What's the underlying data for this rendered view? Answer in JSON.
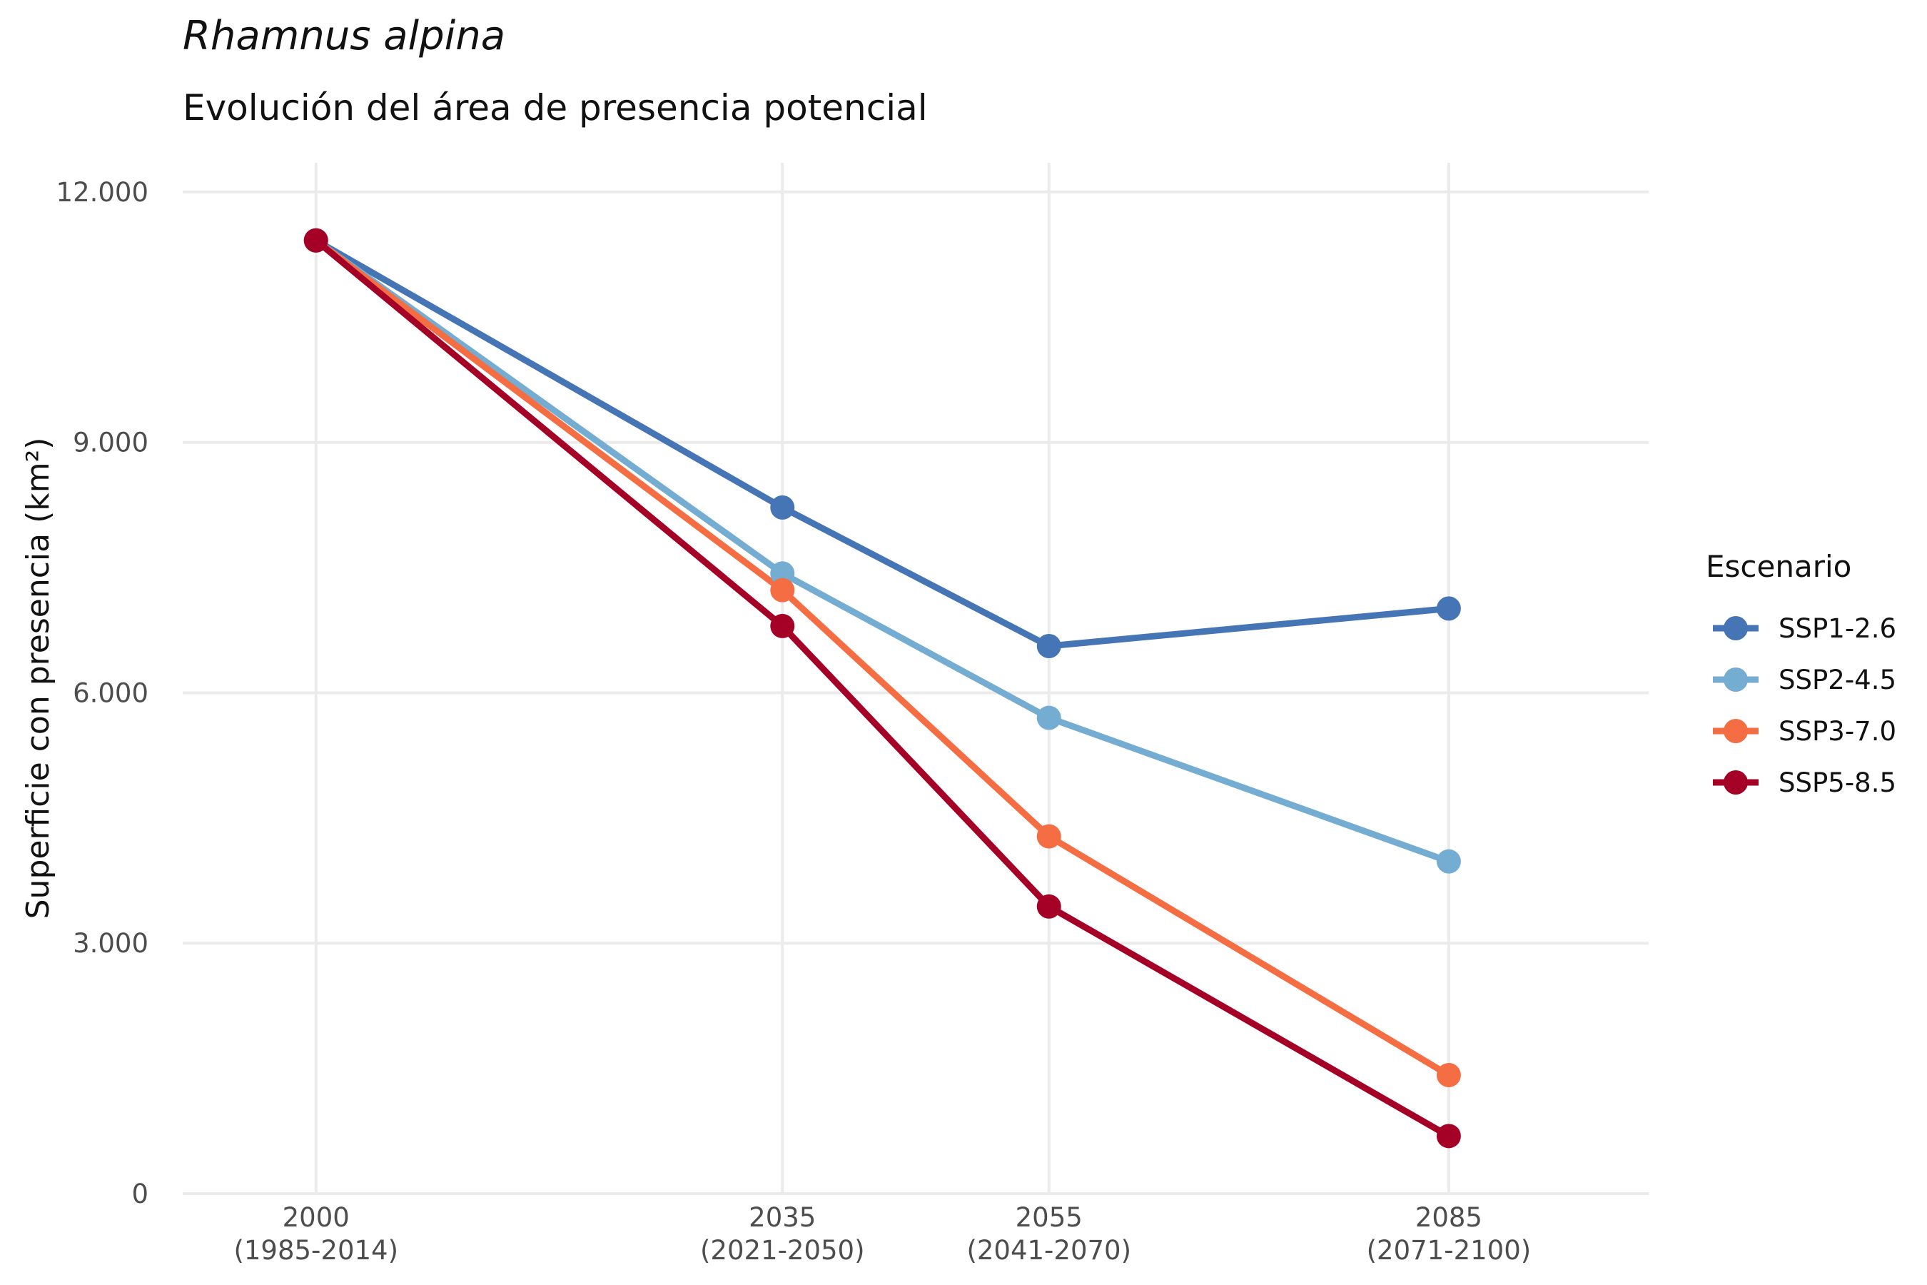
{
  "title": "Rhamnus alpina",
  "subtitle": "Evolución del área de presencia potencial",
  "chart_data": {
    "type": "line",
    "title": "Rhamnus alpina",
    "subtitle": "Evolución del área de presencia potencial",
    "xlabel": "",
    "ylabel": "Superficie con presencia (km²)",
    "x": [
      2000,
      2035,
      2055,
      2085
    ],
    "x_tick_labels": [
      [
        "2000",
        "(1985-2014)"
      ],
      [
        "2035",
        "(2021-2050)"
      ],
      [
        "2055",
        "(2041-2070)"
      ],
      [
        "2085",
        "(2071-2100)"
      ]
    ],
    "xlim": [
      1990,
      2100
    ],
    "ylim": [
      0,
      12350
    ],
    "y_ticks": [
      0,
      3000,
      6000,
      9000,
      12000
    ],
    "y_tick_labels": [
      "0",
      "3.000",
      "6.000",
      "9.000",
      "12.000"
    ],
    "grid": true,
    "legend": {
      "title": "Escenario",
      "position": "right"
    },
    "series": [
      {
        "name": "SSP1-2.6",
        "color": "#4575b4",
        "values": [
          11420,
          8220,
          6560,
          7010
        ]
      },
      {
        "name": "SSP2-4.5",
        "color": "#74add1",
        "values": [
          11420,
          7430,
          5700,
          3980
        ]
      },
      {
        "name": "SSP3-7.0",
        "color": "#f46d43",
        "values": [
          11420,
          7230,
          4280,
          1420
        ]
      },
      {
        "name": "SSP5-8.5",
        "color": "#a50026",
        "values": [
          11420,
          6800,
          3440,
          690
        ]
      }
    ]
  }
}
